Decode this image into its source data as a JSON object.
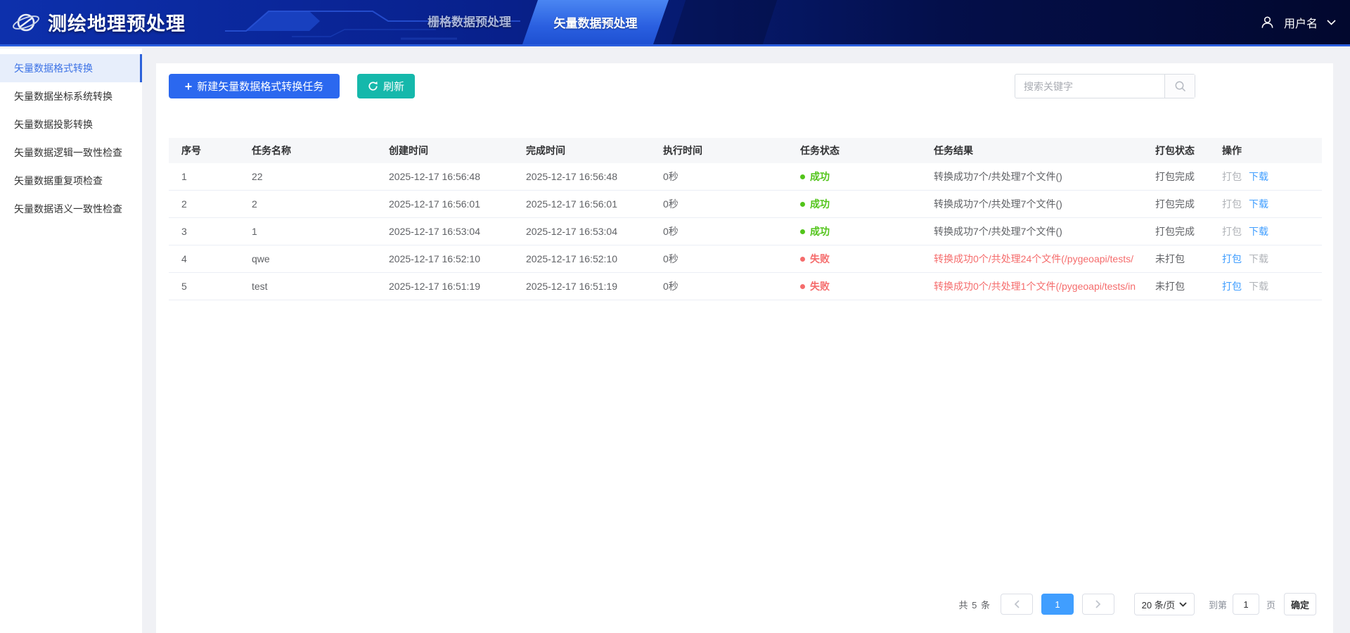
{
  "header": {
    "app_title": "测绘地理预处理",
    "tabs": [
      {
        "label": "栅格数据预处理",
        "active": false
      },
      {
        "label": "矢量数据预处理",
        "active": true
      }
    ],
    "user": {
      "name": "用户名"
    }
  },
  "sidebar": {
    "items": [
      {
        "label": "矢量数据格式转换",
        "active": true
      },
      {
        "label": "矢量数据坐标系统转换",
        "active": false
      },
      {
        "label": "矢量数据投影转换",
        "active": false
      },
      {
        "label": "矢量数据逻辑一致性检查",
        "active": false
      },
      {
        "label": "矢量数据重复项检查",
        "active": false
      },
      {
        "label": "矢量数据语义一致性检查",
        "active": false
      }
    ]
  },
  "toolbar": {
    "new_task_label": "新建矢量数据格式转换任务",
    "refresh_label": "刷新",
    "search_placeholder": "搜索关键字"
  },
  "table": {
    "columns": [
      "序号",
      "任务名称",
      "创建时间",
      "完成时间",
      "执行时间",
      "任务状态",
      "任务结果",
      "打包状态",
      "操作"
    ],
    "rows": [
      {
        "index": "1",
        "name": "22",
        "created": "2025-12-17 16:56:48",
        "finished": "2025-12-17 16:56:48",
        "exec_time": "0秒",
        "status": "成功",
        "status_type": "success",
        "result": "转换成功7个/共处理7个文件()",
        "result_error": false,
        "package_status": "打包完成",
        "package_label": "打包",
        "package_enabled": false,
        "download_label": "下载",
        "download_enabled": true
      },
      {
        "index": "2",
        "name": "2",
        "created": "2025-12-17 16:56:01",
        "finished": "2025-12-17 16:56:01",
        "exec_time": "0秒",
        "status": "成功",
        "status_type": "success",
        "result": "转换成功7个/共处理7个文件()",
        "result_error": false,
        "package_status": "打包完成",
        "package_label": "打包",
        "package_enabled": false,
        "download_label": "下载",
        "download_enabled": true
      },
      {
        "index": "3",
        "name": "1",
        "created": "2025-12-17 16:53:04",
        "finished": "2025-12-17 16:53:04",
        "exec_time": "0秒",
        "status": "成功",
        "status_type": "success",
        "result": "转换成功7个/共处理7个文件()",
        "result_error": false,
        "package_status": "打包完成",
        "package_label": "打包",
        "package_enabled": false,
        "download_label": "下载",
        "download_enabled": true
      },
      {
        "index": "4",
        "name": "qwe",
        "created": "2025-12-17 16:52:10",
        "finished": "2025-12-17 16:52:10",
        "exec_time": "0秒",
        "status": "失败",
        "status_type": "error",
        "result": "转换成功0个/共处理24个文件(/pygeoapi/tests/",
        "result_error": true,
        "package_status": "未打包",
        "package_label": "打包",
        "package_enabled": true,
        "download_label": "下载",
        "download_enabled": false
      },
      {
        "index": "5",
        "name": "test",
        "created": "2025-12-17 16:51:19",
        "finished": "2025-12-17 16:51:19",
        "exec_time": "0秒",
        "status": "失败",
        "status_type": "error",
        "result": "转换成功0个/共处理1个文件(/pygeoapi/tests/in",
        "result_error": true,
        "package_status": "未打包",
        "package_label": "打包",
        "package_enabled": true,
        "download_label": "下载",
        "download_enabled": false
      }
    ]
  },
  "pagination": {
    "total_label": "共 5 条",
    "current_page": "1",
    "page_size_label": "20 条/页",
    "goto_prefix": "到第",
    "goto_value": "1",
    "goto_suffix": "页",
    "confirm_label": "确定"
  },
  "colors": {
    "primary_blue": "#2b68ef",
    "teal": "#15b8ab",
    "success_green": "#52c41a",
    "danger_red": "#f56c6c",
    "link_blue": "#409eff",
    "header_navy": "#0a2699",
    "tab_active_blue": "#2a5fe0"
  }
}
